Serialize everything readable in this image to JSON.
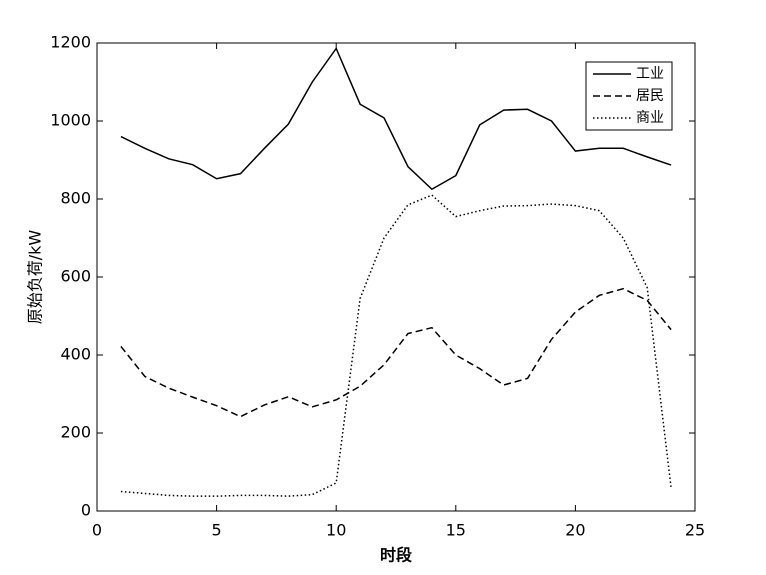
{
  "chart_data": {
    "type": "line",
    "xlabel": "时段",
    "ylabel": "原始负荷/kW",
    "x": [
      1,
      2,
      3,
      4,
      5,
      6,
      7,
      8,
      9,
      10,
      11,
      12,
      13,
      14,
      15,
      16,
      17,
      18,
      19,
      20,
      21,
      22,
      23,
      24
    ],
    "series": [
      {
        "name": "工业",
        "color": "#000000",
        "style": "solid",
        "values": [
          960,
          930,
          903,
          888,
          852,
          865,
          930,
          992,
          1100,
          1186,
          1043,
          1008,
          883,
          825,
          860,
          990,
          1028,
          1030,
          1000,
          923,
          930,
          930,
          908,
          887
        ]
      },
      {
        "name": "居民",
        "color": "#000000",
        "style": "dashed",
        "values": [
          422,
          345,
          315,
          292,
          270,
          242,
          272,
          293,
          267,
          285,
          320,
          375,
          455,
          470,
          400,
          365,
          323,
          340,
          440,
          510,
          553,
          570,
          540,
          465
        ]
      },
      {
        "name": "商业",
        "color": "#000000",
        "style": "dotted",
        "values": [
          50,
          45,
          40,
          38,
          38,
          40,
          40,
          38,
          42,
          72,
          545,
          700,
          785,
          810,
          755,
          770,
          782,
          783,
          787,
          783,
          770,
          700,
          573,
          60
        ]
      }
    ],
    "xlim": [
      0,
      25
    ],
    "xticks": [
      0,
      5,
      10,
      15,
      20,
      25
    ],
    "ylim": [
      0,
      1200
    ],
    "yticks": [
      0,
      200,
      400,
      600,
      800,
      1000,
      1200
    ],
    "legend": "upper right"
  }
}
